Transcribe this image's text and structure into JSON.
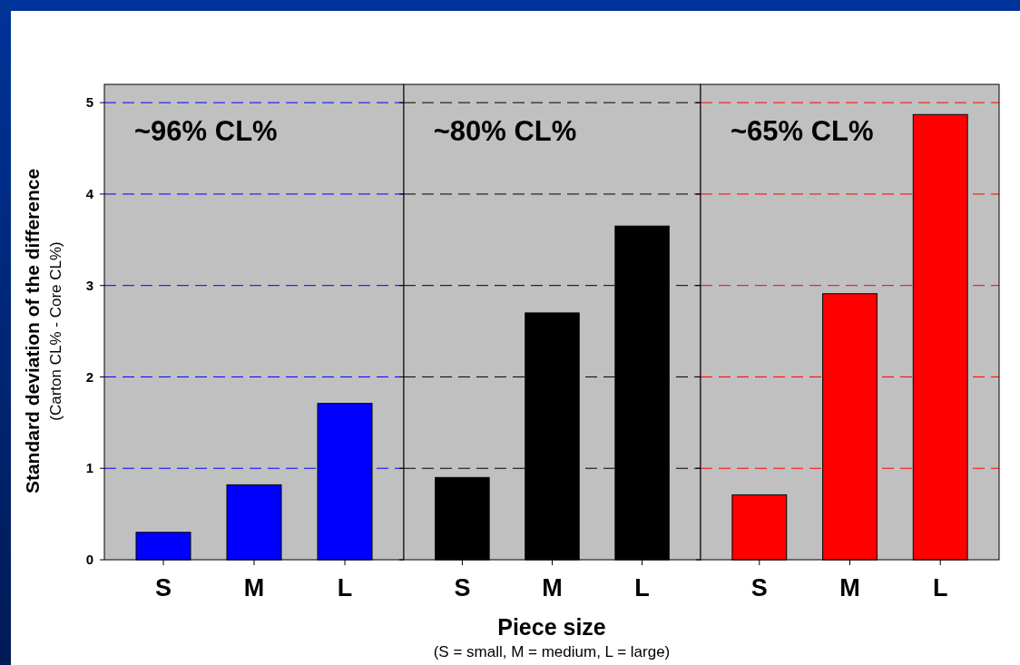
{
  "chart_data": [
    {
      "type": "bar",
      "title": "~96% CL%",
      "ylabel": "Standard deviation of the difference",
      "annotations": [
        "(Carton CL% - Core CL%)"
      ],
      "categories": [
        "S",
        "M",
        "L"
      ],
      "values": [
        0.3,
        0.82,
        1.71
      ],
      "color": "#0000ff",
      "ylim": [
        0,
        5.2
      ],
      "yticks": [
        0,
        1,
        2,
        3,
        4,
        5
      ],
      "grid": "y"
    },
    {
      "type": "bar",
      "title": "~80% CL%",
      "xlabel": "Piece size",
      "annotations": [
        "(S = small, M = medium, L = large)"
      ],
      "categories": [
        "S",
        "M",
        "L"
      ],
      "values": [
        0.9,
        2.7,
        3.65
      ],
      "color": "#000000",
      "ylim": [
        0,
        5.2
      ],
      "yticks": [
        0,
        1,
        2,
        3,
        4,
        5
      ],
      "grid": "y",
      "tick_labels": "x"
    },
    {
      "type": "bar",
      "title": "~65% CL%",
      "categories": [
        "S",
        "M",
        "L"
      ],
      "values": [
        0.71,
        2.91,
        4.87
      ],
      "color": "#ff0000",
      "ylim": [
        0,
        5.2
      ],
      "yticks": [
        0,
        1,
        2,
        3,
        4,
        5
      ],
      "grid": "y",
      "tick_labels": "x"
    }
  ]
}
